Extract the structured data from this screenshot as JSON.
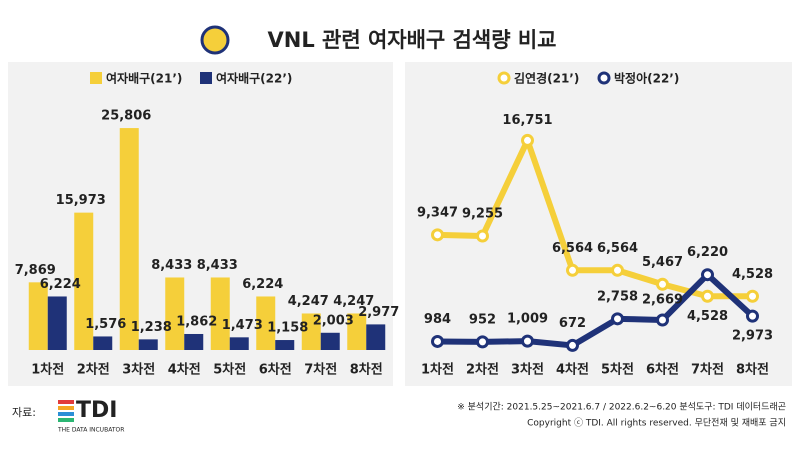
{
  "title": "VNL 관련 여자배구 검색량 비교",
  "chart_data": [
    {
      "type": "bar",
      "categories": [
        "1차전",
        "2차전",
        "3차전",
        "4차전",
        "5차전",
        "6차전",
        "7차전",
        "8차전"
      ],
      "series": [
        {
          "name": "여자배구(21’)",
          "color": "#f5cf3a",
          "values": [
            7869,
            15973,
            25806,
            8433,
            8433,
            6224,
            4247,
            4247
          ],
          "value_labels": [
            "7,869",
            "15,973",
            "25,806",
            "8,433",
            "8,433",
            "6,224",
            "4,247",
            "4,247"
          ]
        },
        {
          "name": "여자배구(22’)",
          "color": "#1f3278",
          "values": [
            6224,
            1576,
            1238,
            1862,
            1473,
            1158,
            2003,
            2977
          ],
          "value_labels": [
            "6,224",
            "1,576",
            "1,238",
            "1,862",
            "1,473",
            "1,158",
            "2,003",
            "2,977"
          ]
        }
      ],
      "ylim": [
        0,
        30000
      ]
    },
    {
      "type": "line",
      "categories": [
        "1차전",
        "2차전",
        "3차전",
        "4차전",
        "5차전",
        "6차전",
        "7차전",
        "8차전"
      ],
      "series": [
        {
          "name": "김연경(21’)",
          "color": "#f5cf3a",
          "values": [
            9347,
            9255,
            16751,
            6564,
            6564,
            5467,
            4528,
            4528
          ],
          "value_labels": [
            "9,347",
            "9,255",
            "16,751",
            "6,564",
            "6,564",
            "5,467",
            "4,528",
            "4,528"
          ]
        },
        {
          "name": "박정아(22’)",
          "color": "#1f3278",
          "values": [
            984,
            952,
            1009,
            672,
            2758,
            2669,
            6220,
            2973
          ],
          "value_labels": [
            "984",
            "952",
            "1,009",
            "672",
            "2,758",
            "2,669",
            "6,220",
            "2,973"
          ]
        }
      ],
      "ylim": [
        0,
        20000
      ]
    }
  ],
  "source_label": "자료:",
  "logo": "TDI",
  "logo_tagline": "THE DATA INCUBATOR",
  "notes": [
    "※ 분석기간: 2021.5.25~2021.6.7 / 2022.6.2~6.20  분석도구: TDI 데이터드래곤",
    "Copyright ⓒ TDI. All rights reserved. 무단전재 및 재배포 금지"
  ]
}
